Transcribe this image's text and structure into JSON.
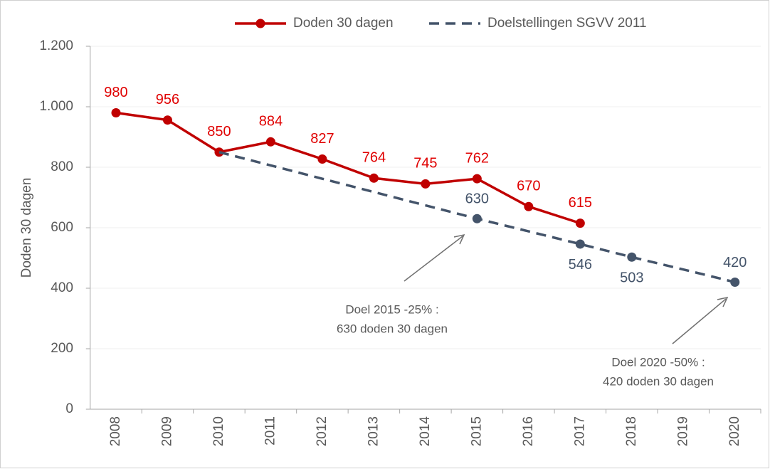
{
  "chart_data": {
    "type": "line",
    "y_label": "Doden 30 dagen",
    "categories": [
      "2008",
      "2009",
      "2010",
      "2011",
      "2012",
      "2013",
      "2014",
      "2015",
      "2016",
      "2017",
      "2018",
      "2019",
      "2020"
    ],
    "series": [
      {
        "name": "Doden 30 dagen",
        "color": "#c00000",
        "style": "solid",
        "markers": true,
        "values": [
          980,
          956,
          850,
          884,
          827,
          764,
          745,
          762,
          670,
          615,
          null,
          null,
          null
        ]
      },
      {
        "name": "Doelstellingen SGVV 2011",
        "color": "#44546a",
        "style": "dashed",
        "markers": false,
        "values": [
          null,
          null,
          850,
          806,
          762,
          718,
          674,
          630,
          588,
          546,
          503,
          462,
          420
        ],
        "value_labels": [
          null,
          null,
          null,
          null,
          null,
          null,
          null,
          "630",
          null,
          "546",
          "503",
          null,
          "420"
        ]
      }
    ],
    "ylim": [
      0,
      1200
    ],
    "yticks": [
      0,
      200,
      400,
      600,
      800,
      {
        "value": 1000,
        "label": "1.000"
      },
      {
        "value": 1200,
        "label": "1.200"
      }
    ],
    "grid": true,
    "legend": "top",
    "annotations": [
      {
        "lines": [
          "Doel 2015 -25% :",
          "630 doden 30 dagen"
        ]
      },
      {
        "lines": [
          "Doel 2020 -50% :",
          "420 doden 30 dagen"
        ]
      }
    ]
  }
}
